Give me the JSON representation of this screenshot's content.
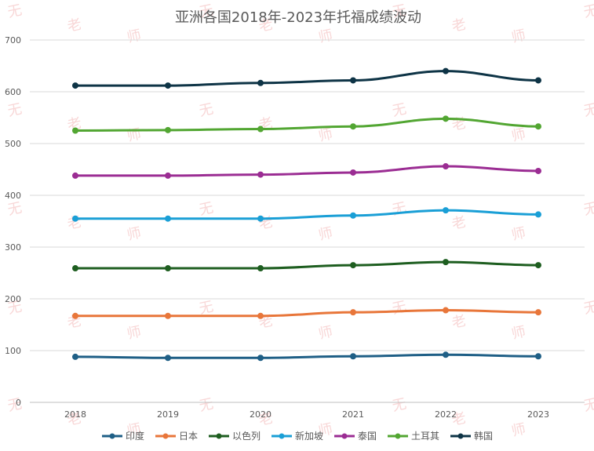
{
  "chart_data": {
    "type": "line",
    "title": "亚洲各国2018年-2023年托福成绩波动",
    "xlabel": "",
    "ylabel": "",
    "categories": [
      "2018",
      "2019",
      "2020",
      "2021",
      "2022",
      "2023"
    ],
    "ylim": [
      0,
      700
    ],
    "yticks": [
      0,
      100,
      200,
      300,
      400,
      500,
      600,
      700
    ],
    "grid": true,
    "legend_position": "bottom",
    "series": [
      {
        "name": "印度",
        "color": "#1F5F86",
        "values": [
          88,
          86,
          86,
          89,
          92,
          89
        ]
      },
      {
        "name": "日本",
        "color": "#E8763A",
        "values": [
          167,
          167,
          167,
          174,
          178,
          174
        ]
      },
      {
        "name": "以色列",
        "color": "#1E5E20",
        "values": [
          259,
          259,
          259,
          265,
          271,
          265
        ]
      },
      {
        "name": "新加坡",
        "color": "#1A9FD6",
        "values": [
          355,
          355,
          355,
          361,
          371,
          363
        ]
      },
      {
        "name": "泰国",
        "color": "#9B2D93",
        "values": [
          438,
          438,
          440,
          444,
          456,
          447
        ]
      },
      {
        "name": "土耳其",
        "color": "#52A632",
        "values": [
          525,
          526,
          528,
          533,
          548,
          533
        ]
      },
      {
        "name": "韩国",
        "color": "#0E3446",
        "values": [
          612,
          612,
          617,
          622,
          640,
          622
        ]
      }
    ]
  },
  "watermark": {
    "chars": [
      "无",
      "老",
      "师"
    ]
  }
}
